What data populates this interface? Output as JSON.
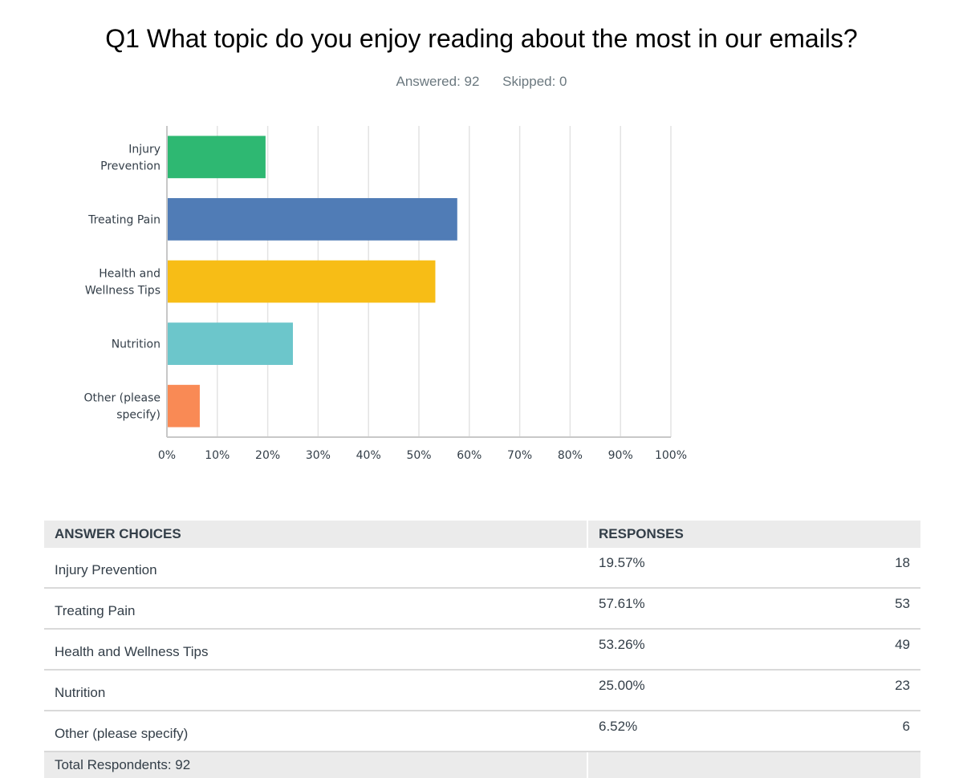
{
  "header": {
    "title": "Q1 What topic do you enjoy reading about the most in our emails?",
    "answered": "Answered: 92",
    "skipped": "Skipped: 0"
  },
  "chart_data": {
    "type": "bar",
    "orientation": "horizontal",
    "categories": [
      [
        "Injury",
        "Prevention"
      ],
      [
        "Treating Pain"
      ],
      [
        "Health and",
        "Wellness Tips"
      ],
      [
        "Nutrition"
      ],
      [
        "Other (please",
        "specify)"
      ]
    ],
    "values": [
      19.57,
      57.61,
      53.26,
      25.0,
      6.52
    ],
    "colors": [
      "#2eb872",
      "#507cb6",
      "#f7bd16",
      "#6cc6cb",
      "#f98a55"
    ],
    "xlim": [
      0,
      100
    ],
    "xticks": [
      "0%",
      "10%",
      "20%",
      "30%",
      "40%",
      "50%",
      "60%",
      "70%",
      "80%",
      "90%",
      "100%"
    ],
    "grid": true
  },
  "table": {
    "headers": [
      "ANSWER CHOICES",
      "RESPONSES"
    ],
    "rows": [
      {
        "choice": "Injury Prevention",
        "percent": "19.57%",
        "count": "18"
      },
      {
        "choice": "Treating Pain",
        "percent": "57.61%",
        "count": "53"
      },
      {
        "choice": "Health and Wellness Tips",
        "percent": "53.26%",
        "count": "49"
      },
      {
        "choice": "Nutrition",
        "percent": "25.00%",
        "count": "23"
      },
      {
        "choice": "Other (please specify)",
        "percent": "6.52%",
        "count": "6"
      }
    ],
    "total": "Total Respondents: 92"
  }
}
